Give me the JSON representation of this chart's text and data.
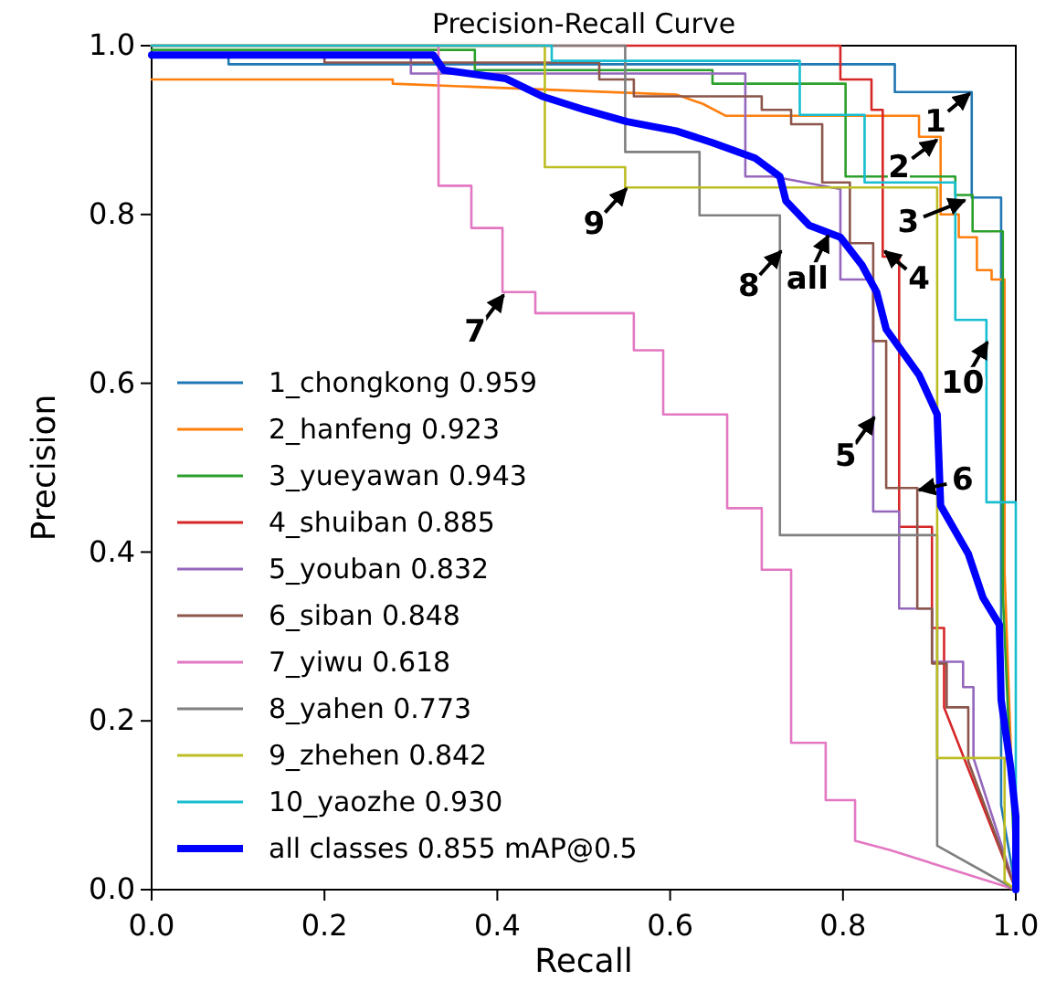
{
  "chart_data": {
    "type": "line",
    "title": "Precision-Recall Curve",
    "xlabel": "Recall",
    "ylabel": "Precision",
    "xlim": [
      0,
      1
    ],
    "ylim": [
      0,
      1
    ],
    "xticks": [
      {
        "value": 0,
        "label": "0.0"
      },
      {
        "value": 0.2,
        "label": "0.2"
      },
      {
        "value": 0.4,
        "label": "0.4"
      },
      {
        "value": 0.6,
        "label": "0.6"
      },
      {
        "value": 0.8,
        "label": "0.8"
      },
      {
        "value": 1,
        "label": "1.0"
      }
    ],
    "yticks": [
      {
        "value": 0,
        "label": "0.0"
      },
      {
        "value": 0.2,
        "label": "0.2"
      },
      {
        "value": 0.4,
        "label": "0.4"
      },
      {
        "value": 0.6,
        "label": "0.6"
      },
      {
        "value": 0.8,
        "label": "0.8"
      },
      {
        "value": 1,
        "label": "1.0"
      }
    ],
    "grid": false,
    "legend": "bottom left",
    "marker": "none",
    "line_style": "solid",
    "series": [
      {
        "name": "1_chongkong 0.959",
        "color": "#1f77b4",
        "x": [
          0,
          0.089,
          0.089,
          0.86,
          0.86,
          0.949,
          0.949,
          0.983,
          0.983,
          1
        ],
        "values": [
          0.99,
          0.99,
          0.978,
          0.978,
          0.945,
          0.945,
          0.82,
          0.82,
          0.1,
          0
        ]
      },
      {
        "name": "2_hanfeng 0.923",
        "color": "#ff7f0e",
        "x": [
          0,
          0.279,
          0.279,
          0.607,
          0.638,
          0.664,
          0.888,
          0.888,
          0.913,
          0.913,
          0.934,
          0.934,
          0.955,
          0.955,
          0.972,
          0.972,
          0.987,
          0.987,
          1
        ],
        "values": [
          0.96,
          0.96,
          0.955,
          0.942,
          0.931,
          0.917,
          0.917,
          0.892,
          0.892,
          0.8,
          0.8,
          0.773,
          0.773,
          0.734,
          0.734,
          0.723,
          0.723,
          0.377,
          0
        ]
      },
      {
        "name": "3_yueyawan 0.943",
        "color": "#2ca02c",
        "x": [
          0,
          0.374,
          0.374,
          0.649,
          0.649,
          0.803,
          0.803,
          0.93,
          0.93,
          0.95,
          0.95,
          0.985,
          0.985,
          1
        ],
        "values": [
          0.995,
          0.995,
          0.971,
          0.971,
          0.955,
          0.955,
          0.845,
          0.845,
          0.823,
          0.823,
          0.78,
          0.78,
          0.35,
          0
        ]
      },
      {
        "name": "4_shuiban 0.885",
        "color": "#d62728",
        "x": [
          0,
          0.797,
          0.797,
          0.833,
          0.833,
          0.846,
          0.846,
          0.865,
          0.865,
          0.903,
          0.903,
          0.917,
          0.917,
          1
        ],
        "values": [
          1,
          1,
          0.96,
          0.96,
          0.924,
          0.924,
          0.75,
          0.75,
          0.43,
          0.43,
          0.31,
          0.31,
          0.216,
          0
        ]
      },
      {
        "name": "5_youban 0.832",
        "color": "#9467bd",
        "x": [
          0,
          0.3,
          0.3,
          0.687,
          0.687,
          0.719,
          0.797,
          0.797,
          0.835,
          0.835,
          0.865,
          0.865,
          0.903,
          0.903,
          0.939,
          0.939,
          0.951,
          0.951,
          1
        ],
        "values": [
          0.99,
          0.99,
          0.967,
          0.967,
          0.845,
          0.845,
          0.83,
          0.723,
          0.723,
          0.448,
          0.448,
          0.333,
          0.333,
          0.27,
          0.27,
          0.24,
          0.24,
          0.156,
          0
        ]
      },
      {
        "name": "6_siban 0.848",
        "color": "#8c564b",
        "x": [
          0,
          0.2,
          0.2,
          0.518,
          0.518,
          0.558,
          0.558,
          0.706,
          0.706,
          0.74,
          0.74,
          0.776,
          0.776,
          0.808,
          0.808,
          0.835,
          0.835,
          0.85,
          0.85,
          0.886,
          0.886,
          0.903,
          0.903,
          0.92,
          0.92,
          0.945,
          0.945,
          1
        ],
        "values": [
          0.99,
          0.99,
          0.98,
          0.98,
          0.96,
          0.96,
          0.94,
          0.94,
          0.924,
          0.924,
          0.907,
          0.907,
          0.838,
          0.838,
          0.766,
          0.766,
          0.65,
          0.65,
          0.476,
          0.476,
          0.333,
          0.333,
          0.268,
          0.268,
          0.216,
          0.216,
          0.152,
          0
        ]
      },
      {
        "name": "7_yiwu 0.618",
        "color": "#e377c2",
        "x": [
          0,
          0.332,
          0.332,
          0.37,
          0.37,
          0.406,
          0.406,
          0.444,
          0.444,
          0.558,
          0.558,
          0.592,
          0.592,
          0.666,
          0.666,
          0.706,
          0.706,
          0.74,
          0.74,
          0.78,
          0.78,
          0.814,
          0.814,
          0.854,
          1
        ],
        "values": [
          1,
          1,
          0.834,
          0.834,
          0.784,
          0.784,
          0.708,
          0.708,
          0.683,
          0.683,
          0.639,
          0.639,
          0.563,
          0.563,
          0.452,
          0.452,
          0.379,
          0.379,
          0.174,
          0.174,
          0.106,
          0.106,
          0.058,
          0.047,
          0
        ]
      },
      {
        "name": "8_yahen 0.773",
        "color": "#7f7f7f",
        "x": [
          0,
          0.548,
          0.548,
          0.634,
          0.634,
          0.727,
          0.727,
          0.909,
          0.909,
          1
        ],
        "values": [
          1,
          1,
          0.874,
          0.874,
          0.799,
          0.799,
          0.42,
          0.42,
          0.052,
          0
        ]
      },
      {
        "name": "9_zhehen 0.842",
        "color": "#bcbd22",
        "x": [
          0,
          0.455,
          0.455,
          0.548,
          0.548,
          0.909,
          0.909,
          0.987,
          0.987,
          1
        ],
        "values": [
          1,
          1,
          0.856,
          0.856,
          0.832,
          0.832,
          0.156,
          0.156,
          0.01,
          0
        ]
      },
      {
        "name": "10_yaozhe 0.930",
        "color": "#17becf",
        "x": [
          0,
          0.463,
          0.463,
          0.75,
          0.75,
          0.825,
          0.825,
          0.93,
          0.93,
          0.966,
          0.966,
          1,
          1
        ],
        "values": [
          1,
          1,
          0.982,
          0.982,
          0.918,
          0.918,
          0.838,
          0.838,
          0.675,
          0.675,
          0.459,
          0.459,
          0
        ]
      },
      {
        "name": "all classes 0.855 mAP@0.5",
        "color": "#0000ff",
        "x": [
          0,
          0.326,
          0.338,
          0.41,
          0.452,
          0.501,
          0.55,
          0.607,
          0.649,
          0.698,
          0.727,
          0.734,
          0.761,
          0.797,
          0.822,
          0.839,
          0.85,
          0.888,
          0.909,
          0.913,
          0.945,
          0.962,
          0.981,
          0.983,
          0.994,
          1,
          1
        ],
        "values": [
          0.989,
          0.989,
          0.971,
          0.961,
          0.94,
          0.924,
          0.91,
          0.899,
          0.885,
          0.867,
          0.845,
          0.816,
          0.787,
          0.773,
          0.74,
          0.708,
          0.664,
          0.61,
          0.563,
          0.455,
          0.398,
          0.346,
          0.314,
          0.225,
          0.145,
          0.087,
          0
        ]
      }
    ],
    "annotations": [
      {
        "text": "1",
        "x": 0.945,
        "y": 0.942
      },
      {
        "text": "2",
        "x": 0.907,
        "y": 0.887
      },
      {
        "text": "3",
        "x": 0.939,
        "y": 0.816
      },
      {
        "text": "4",
        "x": 0.85,
        "y": 0.755
      },
      {
        "text": "5",
        "x": 0.835,
        "y": 0.558
      },
      {
        "text": "6",
        "x": 0.89,
        "y": 0.474
      },
      {
        "text": "7",
        "x": 0.406,
        "y": 0.703
      },
      {
        "text": "8",
        "x": 0.727,
        "y": 0.755
      },
      {
        "text": "9",
        "x": 0.548,
        "y": 0.829
      },
      {
        "text": "10",
        "x": 0.966,
        "y": 0.647
      },
      {
        "text": "all",
        "x": 0.782,
        "y": 0.773
      }
    ]
  }
}
